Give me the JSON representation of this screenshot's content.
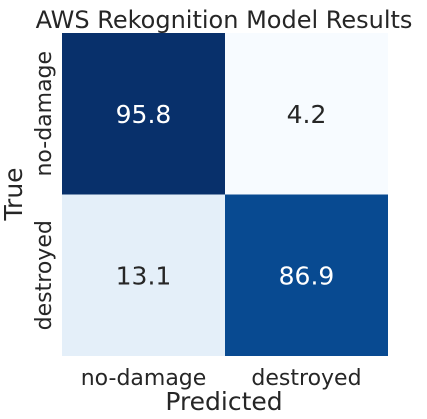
{
  "chart_data": {
    "type": "heatmap",
    "title": "AWS Rekognition Model Results",
    "xlabel": "Predicted",
    "ylabel": "True",
    "x_categories": [
      "no-damage",
      "destroyed"
    ],
    "y_categories": [
      "no-damage",
      "destroyed"
    ],
    "values": [
      [
        95.8,
        4.2
      ],
      [
        13.1,
        86.9
      ]
    ],
    "value_labels": [
      [
        "95.8",
        "4.2"
      ],
      [
        "13.1",
        "86.9"
      ]
    ],
    "colormap": "Blues",
    "colors": {
      "low": "#f7fbff",
      "high": "#08306b",
      "text_light": "#ffffff",
      "text_dark": "#262626"
    },
    "colorbar": false,
    "grid": false,
    "legend": "none"
  }
}
